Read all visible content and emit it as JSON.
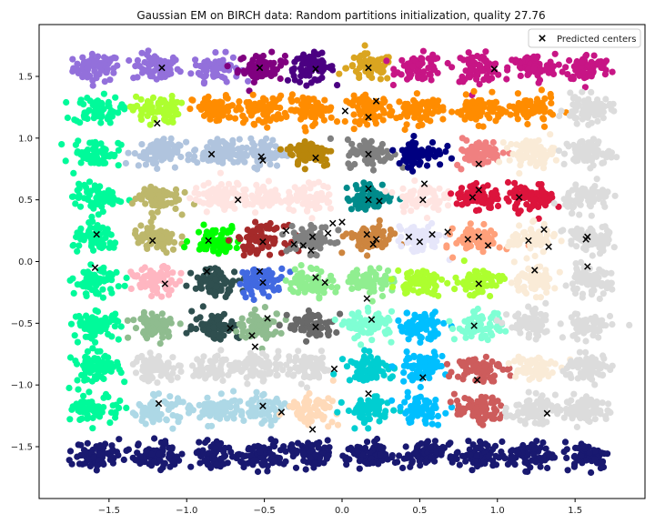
{
  "chart_data": {
    "type": "scatter",
    "title": "Gaussian EM on BIRCH data: Random partitions initialization, quality 27.76",
    "xlabel": "",
    "ylabel": "",
    "xlim": [
      -1.95,
      1.95
    ],
    "ylim": [
      -1.92,
      1.92
    ],
    "x_ticks": [
      -1.5,
      -1.0,
      -0.5,
      0.0,
      0.5,
      1.0,
      1.5
    ],
    "x_tick_labels": [
      "−1.5",
      "−1.0",
      "−0.5",
      "0.0",
      "0.5",
      "1.0",
      "1.5"
    ],
    "y_ticks": [
      -1.5,
      -1.0,
      -0.5,
      0.0,
      0.5,
      1.0,
      1.5
    ],
    "y_tick_labels": [
      "−1.5",
      "−1.0",
      "−0.5",
      "0.0",
      "0.5",
      "1.0",
      "1.5"
    ],
    "grid": false,
    "legend": {
      "position": "top-right",
      "entries": [
        "Predicted centers"
      ]
    },
    "cluster_grid": {
      "x_centers": [
        -1.58,
        -1.2,
        -0.81,
        -0.52,
        -0.2,
        0.18,
        0.5,
        0.88,
        1.22,
        1.58
      ],
      "y_centers": [
        1.57,
        1.23,
        0.88,
        0.52,
        0.18,
        -0.16,
        -0.52,
        -0.86,
        -1.2,
        -1.57
      ],
      "points_per_cluster": 70,
      "spread": [
        0.075,
        0.055
      ]
    },
    "cluster_colors": [
      [
        "#9370DB",
        "#9370DB",
        "#9370DB",
        "#800080",
        "#4B0082",
        "#DAA520",
        "#C71585",
        "#C71585",
        "#C71585",
        "#C71585"
      ],
      [
        "#00FA9A",
        "#ADFF2F",
        "#FF8C00",
        "#FF8C00",
        "#FF8C00",
        "#FF8C00",
        "#FF8C00",
        "#FF8C00",
        "#FF8C00",
        "#DCDCDC"
      ],
      [
        "#00FA9A",
        "#B0C4DE",
        "#B0C4DE",
        "#B0C4DE",
        "#B8860B",
        "#808080",
        "#000080",
        "#F08080",
        "#FAEBD7",
        "#DCDCDC"
      ],
      [
        "#00FA9A",
        "#BDB76B",
        "#FFE4E1",
        "#FFE4E1",
        "#FFE4E1",
        "#008B8B",
        "#FFE4E1",
        "#DC143C",
        "#DC143C",
        "#DCDCDC"
      ],
      [
        "#00FA9A",
        "#BDB76B",
        "#00FF00",
        "#A52A2A",
        "#808080",
        "#CD853F",
        "#E6E6FA",
        "#FFA07A",
        "#FAEBD7",
        "#DCDCDC"
      ],
      [
        "#00FA9A",
        "#FFB6C1",
        "#2F4F4F",
        "#4169E1",
        "#90EE90",
        "#90EE90",
        "#ADFF2F",
        "#ADFF2F",
        "#FAEBD7",
        "#DCDCDC"
      ],
      [
        "#00FA9A",
        "#8FBC8F",
        "#2F4F4F",
        "#8FBC8F",
        "#696969",
        "#7FFFD4",
        "#00BFFF",
        "#7FFFD4",
        "#DCDCDC",
        "#DCDCDC"
      ],
      [
        "#00FA9A",
        "#DCDCDC",
        "#DCDCDC",
        "#DCDCDC",
        "#DCDCDC",
        "#00CED1",
        "#00BFFF",
        "#CD5C5C",
        "#FAEBD7",
        "#DCDCDC"
      ],
      [
        "#00FA9A",
        "#ADD8E6",
        "#ADD8E6",
        "#ADD8E6",
        "#FFDAB9",
        "#00CED1",
        "#00BFFF",
        "#CD5C5C",
        "#DCDCDC",
        "#DCDCDC"
      ],
      [
        "#191970",
        "#191970",
        "#191970",
        "#191970",
        "#191970",
        "#191970",
        "#191970",
        "#191970",
        "#191970",
        "#191970"
      ]
    ],
    "predicted_centers": [
      [
        -1.16,
        1.57
      ],
      [
        -0.53,
        1.57
      ],
      [
        -0.17,
        1.56
      ],
      [
        0.17,
        1.57
      ],
      [
        0.98,
        1.56
      ],
      [
        -1.19,
        1.12
      ],
      [
        0.02,
        1.22
      ],
      [
        0.17,
        1.17
      ],
      [
        0.22,
        1.3
      ],
      [
        -0.84,
        0.87
      ],
      [
        -0.52,
        0.85
      ],
      [
        -0.51,
        0.82
      ],
      [
        -0.17,
        0.84
      ],
      [
        0.17,
        0.87
      ],
      [
        0.88,
        0.79
      ],
      [
        -0.67,
        0.5
      ],
      [
        0.17,
        0.59
      ],
      [
        0.53,
        0.63
      ],
      [
        0.17,
        0.5
      ],
      [
        0.24,
        0.49
      ],
      [
        0.52,
        0.5
      ],
      [
        0.88,
        0.58
      ],
      [
        0.84,
        0.52
      ],
      [
        1.14,
        0.52
      ],
      [
        -0.36,
        0.25
      ],
      [
        0.0,
        0.32
      ],
      [
        -0.06,
        0.31
      ],
      [
        -0.09,
        0.23
      ],
      [
        -0.19,
        0.2
      ],
      [
        0.16,
        0.22
      ],
      [
        0.22,
        0.18
      ],
      [
        0.43,
        0.2
      ],
      [
        -1.58,
        0.22
      ],
      [
        -1.22,
        0.17
      ],
      [
        -0.86,
        0.17
      ],
      [
        -0.51,
        0.16
      ],
      [
        -0.31,
        0.14
      ],
      [
        -0.25,
        0.13
      ],
      [
        -0.2,
        0.09
      ],
      [
        0.2,
        0.14
      ],
      [
        0.5,
        0.16
      ],
      [
        0.58,
        0.22
      ],
      [
        0.68,
        0.24
      ],
      [
        0.81,
        0.18
      ],
      [
        0.88,
        0.2
      ],
      [
        0.94,
        0.13
      ],
      [
        1.2,
        0.17
      ],
      [
        1.3,
        0.26
      ],
      [
        1.33,
        0.12
      ],
      [
        1.58,
        0.2
      ],
      [
        1.57,
        0.18
      ],
      [
        -1.59,
        -0.05
      ],
      [
        -1.14,
        -0.18
      ],
      [
        -0.87,
        -0.08
      ],
      [
        -0.53,
        -0.08
      ],
      [
        -0.51,
        -0.17
      ],
      [
        -0.17,
        -0.13
      ],
      [
        -0.11,
        -0.17
      ],
      [
        0.16,
        -0.3
      ],
      [
        0.88,
        -0.18
      ],
      [
        1.24,
        -0.07
      ],
      [
        1.58,
        -0.04
      ],
      [
        -0.72,
        -0.54
      ],
      [
        -0.48,
        -0.46
      ],
      [
        -0.58,
        -0.6
      ],
      [
        -0.17,
        -0.53
      ],
      [
        0.19,
        -0.47
      ],
      [
        0.85,
        -0.52
      ],
      [
        -0.56,
        -0.69
      ],
      [
        -0.05,
        -0.87
      ],
      [
        0.52,
        -0.94
      ],
      [
        0.87,
        -0.96
      ],
      [
        -1.18,
        -1.15
      ],
      [
        -0.51,
        -1.17
      ],
      [
        -0.39,
        -1.22
      ],
      [
        0.17,
        -1.07
      ],
      [
        1.32,
        -1.23
      ],
      [
        -0.19,
        -1.36
      ]
    ]
  }
}
